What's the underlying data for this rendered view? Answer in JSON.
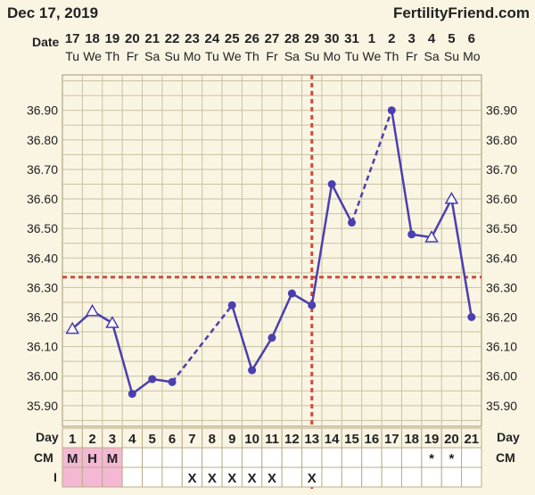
{
  "header": {
    "date": "Dec 17, 2019",
    "site": "FertilityFriend.com"
  },
  "row_labels": {
    "date": "Date",
    "day": "Day",
    "cm": "CM",
    "intercourse": "I"
  },
  "chart_data": {
    "type": "line",
    "title": "",
    "xlabel": "",
    "ylabel": "",
    "x_dates": [
      "17",
      "18",
      "19",
      "20",
      "21",
      "22",
      "23",
      "24",
      "25",
      "26",
      "27",
      "28",
      "29",
      "30",
      "31",
      "1",
      "2",
      "3",
      "4",
      "5",
      "6"
    ],
    "x_weekdays": [
      "Tu",
      "We",
      "Th",
      "Fr",
      "Sa",
      "Su",
      "Mo",
      "Tu",
      "We",
      "Th",
      "Fr",
      "Sa",
      "Su",
      "Mo",
      "Tu",
      "We",
      "Th",
      "Fr",
      "Sa",
      "Su",
      "Mo"
    ],
    "cycle_days": [
      "1",
      "2",
      "3",
      "4",
      "5",
      "6",
      "7",
      "8",
      "9",
      "10",
      "11",
      "12",
      "13",
      "14",
      "15",
      "16",
      "17",
      "18",
      "19",
      "20",
      "21"
    ],
    "ylim": [
      35.83,
      37.02
    ],
    "y_ticks": [
      "35.90",
      "36.00",
      "36.10",
      "36.20",
      "36.30",
      "36.40",
      "36.50",
      "36.60",
      "36.70",
      "36.80",
      "36.90"
    ],
    "temperatures": [
      36.16,
      36.22,
      36.18,
      35.94,
      35.99,
      35.98,
      null,
      null,
      36.24,
      36.02,
      36.13,
      36.28,
      36.24,
      36.65,
      36.52,
      null,
      36.9,
      36.48,
      36.47,
      36.6,
      36.2
    ],
    "point_markers": [
      "open-triangle",
      "open-triangle",
      "open-triangle",
      "dot",
      "dot",
      "dot",
      null,
      null,
      "dot",
      "dot",
      "dot",
      "dot",
      "dot",
      "dot",
      "dot",
      null,
      "dot",
      "dot",
      "open-triangle",
      "open-triangle",
      "dot"
    ],
    "coverline": 36.335,
    "ovulation_cycle_day": 13,
    "cm_row": [
      "M",
      "H",
      "M",
      "",
      "",
      "",
      "",
      "",
      "",
      "",
      "",
      "",
      "",
      "",
      "",
      "",
      "",
      "",
      "*",
      "*",
      ""
    ],
    "intercourse_row": [
      "",
      "",
      "",
      "",
      "",
      "",
      "X",
      "X",
      "X",
      "X",
      "X",
      "",
      "X",
      "",
      "",
      "",
      "",
      "",
      "",
      "",
      ""
    ],
    "colors": {
      "line": "#4a3fb0",
      "reference_lines": "#d04a3a",
      "grid": "#c8c0a0",
      "plot_bg": "#faf5e3",
      "menses_cell": "#f4b8d4"
    }
  }
}
